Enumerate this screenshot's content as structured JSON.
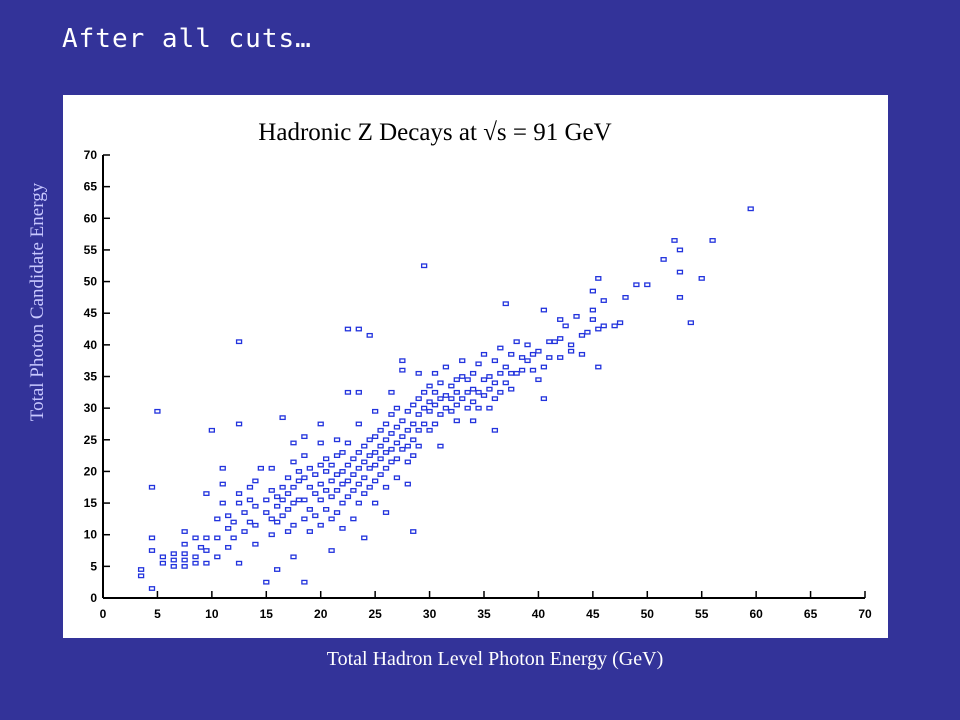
{
  "slide": {
    "title": "After all cuts…"
  },
  "chart_data": {
    "type": "scatter",
    "title": "Hadronic Z Decays at √s = 91 GeV",
    "xlabel": "Total Hadron Level Photon Energy (GeV)",
    "ylabel": "Total Photon Candidate Energy",
    "xlim": [
      0,
      70
    ],
    "ylim": [
      0,
      70
    ],
    "xticks": [
      0,
      5,
      10,
      15,
      20,
      25,
      30,
      35,
      40,
      45,
      50,
      55,
      60,
      65,
      70
    ],
    "yticks": [
      0,
      5,
      10,
      15,
      20,
      25,
      30,
      35,
      40,
      45,
      50,
      55,
      60,
      65,
      70
    ],
    "grid": false,
    "marker": "box",
    "marker_color": "#2233dd",
    "points": [
      [
        3.5,
        4.5
      ],
      [
        3.5,
        3.5
      ],
      [
        4.5,
        1.5
      ],
      [
        4.5,
        7.5
      ],
      [
        4.5,
        9.5
      ],
      [
        4.5,
        17.5
      ],
      [
        5,
        29.5
      ],
      [
        5.5,
        5.5
      ],
      [
        5.5,
        6.5
      ],
      [
        6.5,
        5
      ],
      [
        6.5,
        7
      ],
      [
        6.5,
        6
      ],
      [
        7.5,
        5
      ],
      [
        7.5,
        6
      ],
      [
        7.5,
        7
      ],
      [
        7.5,
        8.5
      ],
      [
        7.5,
        10.5
      ],
      [
        8.5,
        5.5
      ],
      [
        8.5,
        6.5
      ],
      [
        8.5,
        9.5
      ],
      [
        9,
        8
      ],
      [
        9.5,
        7.5
      ],
      [
        9.5,
        5.5
      ],
      [
        9.5,
        9.5
      ],
      [
        9.5,
        16.5
      ],
      [
        10,
        26.5
      ],
      [
        10.5,
        12.5
      ],
      [
        10.5,
        9.5
      ],
      [
        10.5,
        6.5
      ],
      [
        11,
        15
      ],
      [
        11,
        18
      ],
      [
        11,
        20.5
      ],
      [
        11.5,
        13
      ],
      [
        11.5,
        11
      ],
      [
        11.5,
        8
      ],
      [
        12,
        9.5
      ],
      [
        12,
        12
      ],
      [
        12.5,
        15
      ],
      [
        12.5,
        16.5
      ],
      [
        12.5,
        40.5
      ],
      [
        12.5,
        27.5
      ],
      [
        12.5,
        5.5
      ],
      [
        13,
        10.5
      ],
      [
        13,
        13.5
      ],
      [
        13.5,
        12
      ],
      [
        13.5,
        15.5
      ],
      [
        13.5,
        17.5
      ],
      [
        14,
        8.5
      ],
      [
        14,
        11.5
      ],
      [
        14,
        14.5
      ],
      [
        14,
        18.5
      ],
      [
        14.5,
        20.5
      ],
      [
        15,
        2.5
      ],
      [
        15,
        13.5
      ],
      [
        15,
        15.5
      ],
      [
        15.5,
        10
      ],
      [
        15.5,
        12.5
      ],
      [
        15.5,
        17
      ],
      [
        15.5,
        20.5
      ],
      [
        16,
        4.5
      ],
      [
        16,
        12
      ],
      [
        16,
        14.5
      ],
      [
        16,
        16
      ],
      [
        16.5,
        13
      ],
      [
        16.5,
        15.5
      ],
      [
        16.5,
        17.5
      ],
      [
        16.5,
        28.5
      ],
      [
        17,
        10.5
      ],
      [
        17,
        14
      ],
      [
        17,
        16.5
      ],
      [
        17,
        19
      ],
      [
        17.5,
        6.5
      ],
      [
        17.5,
        11.5
      ],
      [
        17.5,
        15
      ],
      [
        17.5,
        17.5
      ],
      [
        17.5,
        21.5
      ],
      [
        17.5,
        24.5
      ],
      [
        18,
        15.5
      ],
      [
        18,
        18.5
      ],
      [
        18,
        20
      ],
      [
        18.5,
        2.5
      ],
      [
        18.5,
        12.5
      ],
      [
        18.5,
        15.5
      ],
      [
        18.5,
        19
      ],
      [
        18.5,
        22.5
      ],
      [
        18.5,
        25.5
      ],
      [
        19,
        10.5
      ],
      [
        19,
        14
      ],
      [
        19,
        17.5
      ],
      [
        19,
        20.5
      ],
      [
        19.5,
        13
      ],
      [
        19.5,
        16.5
      ],
      [
        19.5,
        19.5
      ],
      [
        20,
        11.5
      ],
      [
        20,
        15.5
      ],
      [
        20,
        18
      ],
      [
        20,
        21
      ],
      [
        20,
        24.5
      ],
      [
        20,
        27.5
      ],
      [
        20.5,
        14
      ],
      [
        20.5,
        17
      ],
      [
        20.5,
        20
      ],
      [
        20.5,
        22
      ],
      [
        21,
        7.5
      ],
      [
        21,
        12.5
      ],
      [
        21,
        16
      ],
      [
        21,
        18.5
      ],
      [
        21,
        21
      ],
      [
        21.5,
        13.5
      ],
      [
        21.5,
        17
      ],
      [
        21.5,
        19.5
      ],
      [
        21.5,
        22.5
      ],
      [
        21.5,
        25
      ],
      [
        22,
        11
      ],
      [
        22,
        15
      ],
      [
        22,
        18
      ],
      [
        22,
        20
      ],
      [
        22,
        23
      ],
      [
        22.5,
        16
      ],
      [
        22.5,
        18.5
      ],
      [
        22.5,
        21
      ],
      [
        22.5,
        24.5
      ],
      [
        22.5,
        32.5
      ],
      [
        22.5,
        42.5
      ],
      [
        23,
        12.5
      ],
      [
        23,
        17
      ],
      [
        23,
        19.5
      ],
      [
        23,
        22
      ],
      [
        23.5,
        15
      ],
      [
        23.5,
        18
      ],
      [
        23.5,
        20.5
      ],
      [
        23.5,
        23
      ],
      [
        23.5,
        27.5
      ],
      [
        23.5,
        32.5
      ],
      [
        23.5,
        42.5
      ],
      [
        24,
        9.5
      ],
      [
        24,
        16.5
      ],
      [
        24,
        19
      ],
      [
        24,
        21.5
      ],
      [
        24,
        24
      ],
      [
        24.5,
        17.5
      ],
      [
        24.5,
        20.5
      ],
      [
        24.5,
        22.5
      ],
      [
        24.5,
        25
      ],
      [
        24.5,
        41.5
      ],
      [
        25,
        15
      ],
      [
        25,
        18.5
      ],
      [
        25,
        21
      ],
      [
        25,
        23
      ],
      [
        25,
        25.5
      ],
      [
        25,
        29.5
      ],
      [
        25.5,
        19.5
      ],
      [
        25.5,
        22
      ],
      [
        25.5,
        24
      ],
      [
        25.5,
        26.5
      ],
      [
        26,
        13.5
      ],
      [
        26,
        17.5
      ],
      [
        26,
        20.5
      ],
      [
        26,
        23
      ],
      [
        26,
        25
      ],
      [
        26,
        27.5
      ],
      [
        26.5,
        21.5
      ],
      [
        26.5,
        23.5
      ],
      [
        26.5,
        26
      ],
      [
        26.5,
        29
      ],
      [
        26.5,
        32.5
      ],
      [
        27,
        19
      ],
      [
        27,
        22
      ],
      [
        27,
        24.5
      ],
      [
        27,
        27
      ],
      [
        27,
        30
      ],
      [
        27.5,
        23.5
      ],
      [
        27.5,
        25.5
      ],
      [
        27.5,
        28
      ],
      [
        27.5,
        36
      ],
      [
        27.5,
        37.5
      ],
      [
        28,
        18
      ],
      [
        28,
        21.5
      ],
      [
        28,
        24
      ],
      [
        28,
        26.5
      ],
      [
        28,
        29.5
      ],
      [
        28.5,
        10.5
      ],
      [
        28.5,
        22.5
      ],
      [
        28.5,
        25
      ],
      [
        28.5,
        27.5
      ],
      [
        28.5,
        30.5
      ],
      [
        29,
        24
      ],
      [
        29,
        26.5
      ],
      [
        29,
        29
      ],
      [
        29,
        31.5
      ],
      [
        29,
        35.5
      ],
      [
        29.5,
        52.5
      ],
      [
        29.5,
        27.5
      ],
      [
        29.5,
        30
      ],
      [
        29.5,
        32.5
      ],
      [
        30,
        26.5
      ],
      [
        30,
        29.5
      ],
      [
        30,
        31
      ],
      [
        30,
        33.5
      ],
      [
        30.5,
        27.5
      ],
      [
        30.5,
        30.5
      ],
      [
        30.5,
        32.5
      ],
      [
        30.5,
        35.5
      ],
      [
        31,
        24
      ],
      [
        31,
        29
      ],
      [
        31,
        31.5
      ],
      [
        31,
        34
      ],
      [
        31.5,
        30
      ],
      [
        31.5,
        32
      ],
      [
        31.5,
        36.5
      ],
      [
        32,
        29.5
      ],
      [
        32,
        31.5
      ],
      [
        32,
        33.5
      ],
      [
        32.5,
        28
      ],
      [
        32.5,
        30.5
      ],
      [
        32.5,
        32.5
      ],
      [
        32.5,
        34.5
      ],
      [
        33,
        31.5
      ],
      [
        33,
        35
      ],
      [
        33,
        37.5
      ],
      [
        33.5,
        30
      ],
      [
        33.5,
        32.5
      ],
      [
        33.5,
        34.5
      ],
      [
        34,
        28
      ],
      [
        34,
        31
      ],
      [
        34,
        33
      ],
      [
        34,
        35.5
      ],
      [
        34.5,
        30
      ],
      [
        34.5,
        32.5
      ],
      [
        34.5,
        37
      ],
      [
        35,
        32
      ],
      [
        35,
        34.5
      ],
      [
        35,
        38.5
      ],
      [
        35.5,
        30
      ],
      [
        35.5,
        33
      ],
      [
        35.5,
        35
      ],
      [
        36,
        26.5
      ],
      [
        36,
        31.5
      ],
      [
        36,
        34
      ],
      [
        36,
        37.5
      ],
      [
        36.5,
        32.5
      ],
      [
        36.5,
        35.5
      ],
      [
        36.5,
        39.5
      ],
      [
        37,
        34
      ],
      [
        37,
        36.5
      ],
      [
        37,
        46.5
      ],
      [
        37.5,
        33
      ],
      [
        37.5,
        35.5
      ],
      [
        37.5,
        38.5
      ],
      [
        38,
        35.5
      ],
      [
        38,
        40.5
      ],
      [
        38.5,
        38
      ],
      [
        38.5,
        36
      ],
      [
        39,
        37.5
      ],
      [
        39,
        40
      ],
      [
        39.5,
        36
      ],
      [
        39.5,
        38.5
      ],
      [
        40,
        34.5
      ],
      [
        40,
        39
      ],
      [
        40.5,
        31.5
      ],
      [
        40.5,
        36.5
      ],
      [
        40.5,
        45.5
      ],
      [
        41,
        38
      ],
      [
        41,
        40.5
      ],
      [
        41.5,
        40.5
      ],
      [
        42,
        38
      ],
      [
        42,
        41
      ],
      [
        42,
        44
      ],
      [
        42.5,
        43
      ],
      [
        43,
        40
      ],
      [
        43,
        39
      ],
      [
        43.5,
        44.5
      ],
      [
        44,
        38.5
      ],
      [
        44,
        41.5
      ],
      [
        44.5,
        42
      ],
      [
        45,
        44
      ],
      [
        45,
        45.5
      ],
      [
        45,
        48.5
      ],
      [
        45.5,
        36.5
      ],
      [
        45.5,
        42.5
      ],
      [
        45.5,
        50.5
      ],
      [
        46,
        43
      ],
      [
        46,
        47
      ],
      [
        47,
        43
      ],
      [
        47.5,
        43.5
      ],
      [
        48,
        47.5
      ],
      [
        49,
        49.5
      ],
      [
        50,
        49.5
      ],
      [
        51.5,
        53.5
      ],
      [
        52.5,
        56.5
      ],
      [
        53,
        51.5
      ],
      [
        53,
        47.5
      ],
      [
        53,
        55
      ],
      [
        54,
        43.5
      ],
      [
        55,
        50.5
      ],
      [
        56,
        56.5
      ],
      [
        59.5,
        61.5
      ]
    ]
  }
}
